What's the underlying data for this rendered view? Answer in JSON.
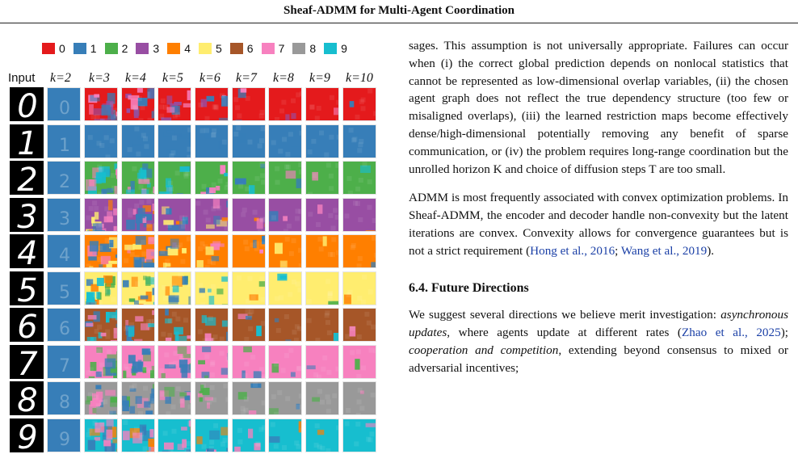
{
  "header": {
    "title": "Sheaf-ADMM for Multi-Agent Coordination"
  },
  "legend": [
    {
      "label": "0",
      "color": "#e41a1c"
    },
    {
      "label": "1",
      "color": "#377eb8"
    },
    {
      "label": "2",
      "color": "#4daf4a"
    },
    {
      "label": "3",
      "color": "#984ea3"
    },
    {
      "label": "4",
      "color": "#ff7f00"
    },
    {
      "label": "5",
      "color": "#ffed6f"
    },
    {
      "label": "6",
      "color": "#a65628"
    },
    {
      "label": "7",
      "color": "#f781bf"
    },
    {
      "label": "8",
      "color": "#999999"
    },
    {
      "label": "9",
      "color": "#17becf"
    }
  ],
  "figure": {
    "columns": [
      "Input",
      "k=2",
      "k=3",
      "k=4",
      "k=5",
      "k=6",
      "k=7",
      "k=8",
      "k=9",
      "k=10"
    ],
    "digits": [
      "0",
      "1",
      "2",
      "3",
      "4",
      "5",
      "6",
      "7",
      "8",
      "9"
    ]
  },
  "text": {
    "para1": "sages. This assumption is not universally appropriate. Failures can occur when (i) the correct global prediction depends on nonlocal statistics that cannot be represented as low-dimensional overlap variables, (ii) the chosen agent graph does not reflect the true dependency structure (too few or misaligned overlaps), (iii) the learned restriction maps become effectively dense/high-dimensional potentially removing any benefit of sparse communication, or (iv) the problem requires long-range coordination but the unrolled horizon K and choice of diffusion steps T are too small.",
    "para2_a": "ADMM is most frequently associated with convex optimization problems. In Sheaf-ADMM, the encoder and decoder handle non-convexity but the latent iterations are convex. Convexity allows for convergence guarantees but is not a strict requirement (",
    "cite1": "Hong et al., 2016",
    "para2_sep": "; ",
    "cite2": "Wang et al., 2019",
    "para2_b": ").",
    "section": "6.4. Future Directions",
    "para3_a": "We suggest several directions we believe merit investigation: ",
    "async": "asynchronous updates",
    "para3_b": ", where agents update at different rates (",
    "cite3": "Zhao et al., 2025",
    "para3_c": "); ",
    "coop": "cooperation and competition",
    "para3_d": ", extending beyond consensus to mixed or adversarial incentives;"
  }
}
